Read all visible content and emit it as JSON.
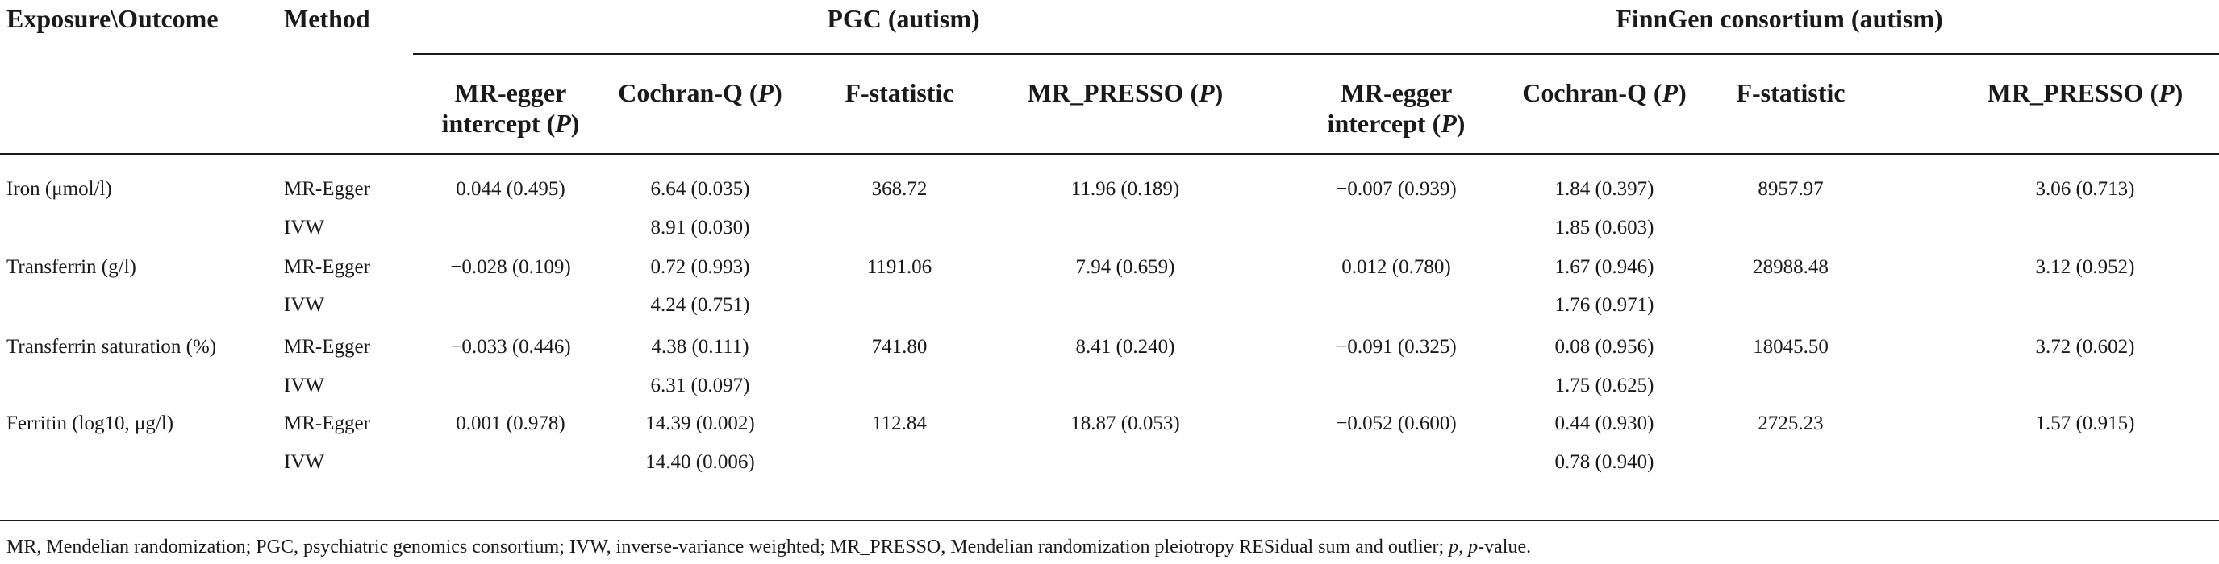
{
  "table": {
    "headers": {
      "exposure": "Exposure\\Outcome",
      "method": "Method",
      "group1": "PGC (autism)",
      "group2": "FinnGen consortium (autism)",
      "sub": [
        {
          "pre": "MR-egger",
          "post": "intercept (",
          "ital": "P",
          "tail": ")"
        },
        {
          "pre": "",
          "post": "Cochran-Q (",
          "ital": "P",
          "tail": ")"
        },
        {
          "pre": "",
          "post": "F-statistic",
          "ital": "",
          "tail": ""
        },
        {
          "pre": "",
          "post": "MR_PRESSO (",
          "ital": "P",
          "tail": ")"
        },
        {
          "pre": "MR-egger",
          "post": "intercept (",
          "ital": "P",
          "tail": ")"
        },
        {
          "pre": "",
          "post": "Cochran-Q (",
          "ital": "P",
          "tail": ")"
        },
        {
          "pre": "",
          "post": "F-statistic",
          "ital": "",
          "tail": ""
        },
        {
          "pre": "",
          "post": "MR_PRESSO (",
          "ital": "P",
          "tail": ")"
        }
      ]
    },
    "rows": [
      {
        "exposure": "Iron (μmol/l)",
        "method": "MR-Egger",
        "cells": [
          "0.044 (0.495)",
          "6.64 (0.035)",
          "368.72",
          "11.96 (0.189)",
          "−0.007 (0.939)",
          "1.84 (0.397)",
          "8957.97",
          "3.06 (0.713)"
        ]
      },
      {
        "exposure": "",
        "method": "IVW",
        "cells": [
          "",
          "8.91 (0.030)",
          "",
          "",
          "",
          "1.85 (0.603)",
          "",
          ""
        ]
      },
      {
        "exposure": "Transferrin (g/l)",
        "method": "MR-Egger",
        "cells": [
          "−0.028 (0.109)",
          "0.72 (0.993)",
          "1191.06",
          "7.94 (0.659)",
          "0.012 (0.780)",
          "1.67 (0.946)",
          "28988.48",
          "3.12 (0.952)"
        ]
      },
      {
        "exposure": "",
        "method": "IVW",
        "cells": [
          "",
          "4.24 (0.751)",
          "",
          "",
          "",
          "1.76 (0.971)",
          "",
          ""
        ]
      },
      {
        "exposure": "Transferrin saturation (%)",
        "method": "MR-Egger",
        "cells": [
          "−0.033 (0.446)",
          "4.38 (0.111)",
          "741.80",
          "8.41 (0.240)",
          "−0.091 (0.325)",
          "0.08 (0.956)",
          "18045.50",
          "3.72 (0.602)"
        ]
      },
      {
        "exposure": "",
        "method": "IVW",
        "cells": [
          "",
          "6.31 (0.097)",
          "",
          "",
          "",
          "1.75 (0.625)",
          "",
          ""
        ]
      },
      {
        "exposure": "Ferritin (log10, μg/l)",
        "method": "MR-Egger",
        "cells": [
          "0.001 (0.978)",
          "14.39 (0.002)",
          "112.84",
          "18.87 (0.053)",
          "−0.052 (0.600)",
          "0.44 (0.930)",
          "2725.23",
          "1.57 (0.915)"
        ]
      },
      {
        "exposure": "",
        "method": "IVW",
        "cells": [
          "",
          "14.40 (0.006)",
          "",
          "",
          "",
          "0.78 (0.940)",
          "",
          ""
        ]
      }
    ],
    "footnote_main": "MR, Mendelian randomization; PGC, psychiatric genomics consortium; IVW, inverse-variance weighted; MR_PRESSO, Mendelian randomization pleiotropy RESidual sum and outlier; ",
    "footnote_p": "p",
    "footnote_mid": ", ",
    "footnote_p2": "p",
    "footnote_end": "-value."
  }
}
